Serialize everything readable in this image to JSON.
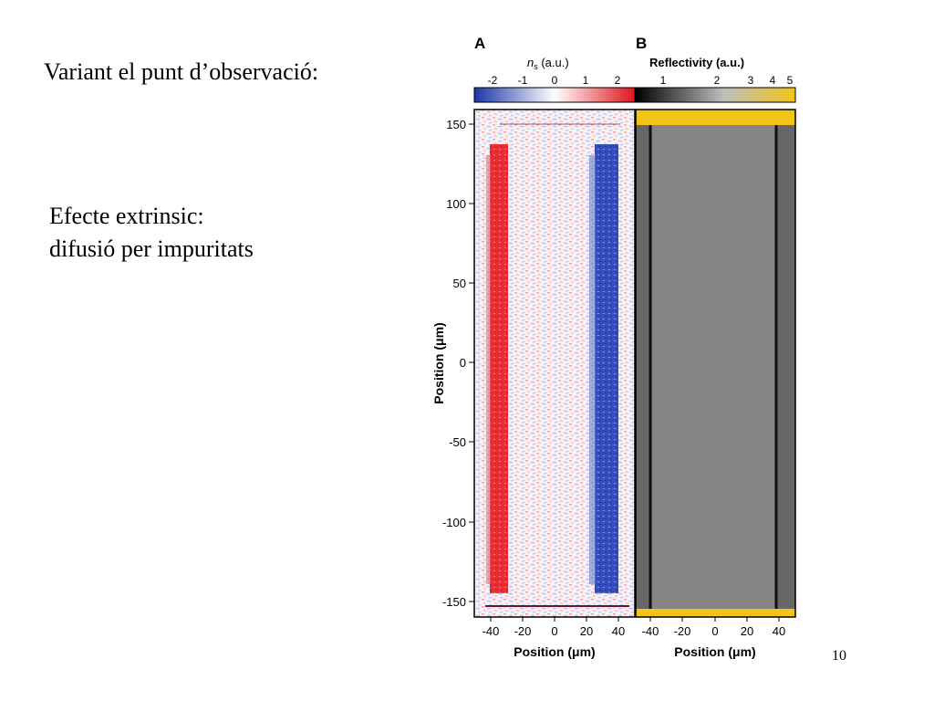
{
  "slide": {
    "title": "Variant el punt d’observació:",
    "body_line1": "Efecte extrinsic:",
    "body_line2": "difusió per impuritats",
    "page_number": "10"
  },
  "figure": {
    "panel_a": {
      "letter": "A",
      "colorbar_symbol": "n",
      "colorbar_subscript": "s",
      "colorbar_unit": " (a.u.)",
      "colorbar_ticks": [
        "-2",
        "-1",
        "0",
        "1",
        "2"
      ],
      "colorbar_colors": [
        "#1a35a8",
        "#ffffff",
        "#e0141c"
      ]
    },
    "panel_b": {
      "letter": "B",
      "colorbar_title": "Reflectivity (a.u.)",
      "colorbar_ticks": [
        "1",
        "2",
        "3",
        "4",
        "5"
      ],
      "colorbar_colors": [
        "#000000",
        "#bdbdbd",
        "#f2c418"
      ]
    },
    "y_axis_label": "Position (μm)",
    "y_ticks": [
      "150",
      "100",
      "50",
      "0",
      "-50",
      "-100",
      "-150"
    ],
    "x_axis_label": "Position (μm)",
    "x_ticks": [
      "-40",
      "-20",
      "0",
      "20",
      "40"
    ]
  },
  "chart_data": [
    {
      "type": "heatmap",
      "panel": "A",
      "xlabel": "Position (μm)",
      "ylabel": "Position (μm)",
      "xlim": [
        -48,
        48
      ],
      "ylim": [
        -158,
        158
      ],
      "colorbar_label": "ns (a.u.)",
      "colorbar_range": [
        -2,
        2
      ],
      "features": [
        {
          "x": -36,
          "y_range": [
            -150,
            130
          ],
          "value": 2
        },
        {
          "x": 30,
          "y_range": [
            -150,
            130
          ],
          "value": -2
        }
      ],
      "background_value": 0
    },
    {
      "type": "heatmap",
      "panel": "B",
      "xlabel": "Position (μm)",
      "xlim": [
        -48,
        48
      ],
      "ylim": [
        -158,
        158
      ],
      "colorbar_label": "Reflectivity (a.u.)",
      "colorbar_range": [
        1,
        5
      ],
      "features": [
        {
          "region": "sample",
          "x_range": [
            -40,
            40
          ],
          "y_range": [
            -153,
            153
          ],
          "value": 2
        },
        {
          "region": "edges",
          "x": [
            -40,
            40
          ],
          "value": 1.4
        },
        {
          "region": "outside",
          "value": 5
        }
      ]
    }
  ]
}
